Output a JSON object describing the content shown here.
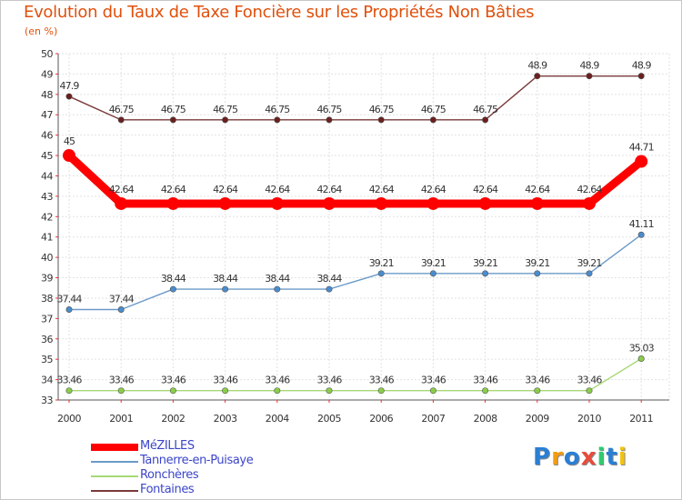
{
  "title": "Evolution du Taux de Taxe Foncière sur les Propriétés Non Bâties",
  "subtitle": "(en %)",
  "logo": {
    "text": "Proxiti",
    "colors": [
      "#2a7fd4",
      "#f39c12",
      "#2a7fd4",
      "#e74c3c",
      "#2ecc71",
      "#2a7fd4",
      "#f1c40f"
    ]
  },
  "chart_data": {
    "type": "line",
    "title": "Evolution du Taux de Taxe Foncière sur les Propriétés Non Bâties",
    "ylabel": "(en %)",
    "xlabel": "",
    "ylim": [
      33,
      50
    ],
    "yticks": [
      "33",
      "34",
      "35",
      "36",
      "37",
      "38",
      "39",
      "40",
      "41",
      "42",
      "43",
      "44",
      "45",
      "46",
      "47",
      "48",
      "49",
      "50"
    ],
    "categories": [
      "2000",
      "2001",
      "2002",
      "2003",
      "2004",
      "2005",
      "2006",
      "2007",
      "2008",
      "2009",
      "2010",
      "2011"
    ],
    "grid": true,
    "legend": "bottom-left",
    "series": [
      {
        "name": "MéZILLES",
        "color": "#ff0000",
        "markerColor": "#ff0000",
        "emphasis": true,
        "values": [
          45,
          42.64,
          42.64,
          42.64,
          42.64,
          42.64,
          42.64,
          42.64,
          42.64,
          42.64,
          42.64,
          44.71
        ],
        "labels": [
          "45",
          "42.64",
          "42.64",
          "42.64",
          "42.64",
          "42.64",
          "42.64",
          "42.64",
          "42.64",
          "42.64",
          "42.64",
          "44.71"
        ]
      },
      {
        "name": "Tannerre-en-Puisaye",
        "color": "#6b9ac8",
        "markerColor": "#4a8ccd",
        "values": [
          37.44,
          37.44,
          38.44,
          38.44,
          38.44,
          38.44,
          39.21,
          39.21,
          39.21,
          39.21,
          39.21,
          41.11
        ],
        "labels": [
          "37.44",
          "37.44",
          "38.44",
          "38.44",
          "38.44",
          "38.44",
          "39.21",
          "39.21",
          "39.21",
          "39.21",
          "39.21",
          "41.11"
        ]
      },
      {
        "name": "Ronchères",
        "color": "#a6d977",
        "markerColor": "#8acd4a",
        "values": [
          33.46,
          33.46,
          33.46,
          33.46,
          33.46,
          33.46,
          33.46,
          33.46,
          33.46,
          33.46,
          33.46,
          35.03
        ],
        "labels": [
          "33.46",
          "33.46",
          "33.46",
          "33.46",
          "33.46",
          "33.46",
          "33.46",
          "33.46",
          "33.46",
          "33.46",
          "33.46",
          "35.03"
        ]
      },
      {
        "name": "Fontaines",
        "color": "#7a3a3a",
        "markerColor": "#6b1f1f",
        "values": [
          47.9,
          46.75,
          46.75,
          46.75,
          46.75,
          46.75,
          46.75,
          46.75,
          46.75,
          48.9,
          48.9,
          48.9
        ],
        "labels": [
          "47.9",
          "46.75",
          "46.75",
          "46.75",
          "46.75",
          "46.75",
          "46.75",
          "46.75",
          "46.75",
          "48.9",
          "48.9",
          "48.9"
        ]
      }
    ]
  }
}
